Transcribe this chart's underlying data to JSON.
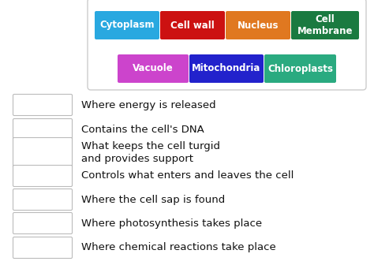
{
  "background_color": "#ffffff",
  "tags_row1": [
    {
      "label": "Cytoplasm",
      "color": "#29a8e0"
    },
    {
      "label": "Cell wall",
      "color": "#cc1111"
    },
    {
      "label": "Nucleus",
      "color": "#e07820"
    },
    {
      "label": "Cell\nMembrane",
      "color": "#1a7a40"
    }
  ],
  "tags_row2": [
    {
      "label": "Vacuole",
      "color": "#cc44cc"
    },
    {
      "label": "Mitochondria",
      "color": "#2222cc"
    },
    {
      "label": "Chloroplasts",
      "color": "#2aaa80"
    }
  ],
  "questions": [
    "Where energy is released",
    "Contains the cell's DNA",
    "What keeps the cell turgid\nand provides support",
    "Controls what enters and leaves the cell",
    "Where the cell sap is found",
    "Where photosynthesis takes place",
    "Where chemical reactions take place"
  ],
  "answer_box_color": "#ffffff",
  "answer_box_edge": "#bbbbbb",
  "question_text_color": "#111111",
  "tag_text_color": "#ffffff",
  "tag_fontsize": 8.5,
  "question_fontsize": 9.5,
  "outer_box_edge": "#cccccc",
  "outer_box_face": "#ffffff"
}
